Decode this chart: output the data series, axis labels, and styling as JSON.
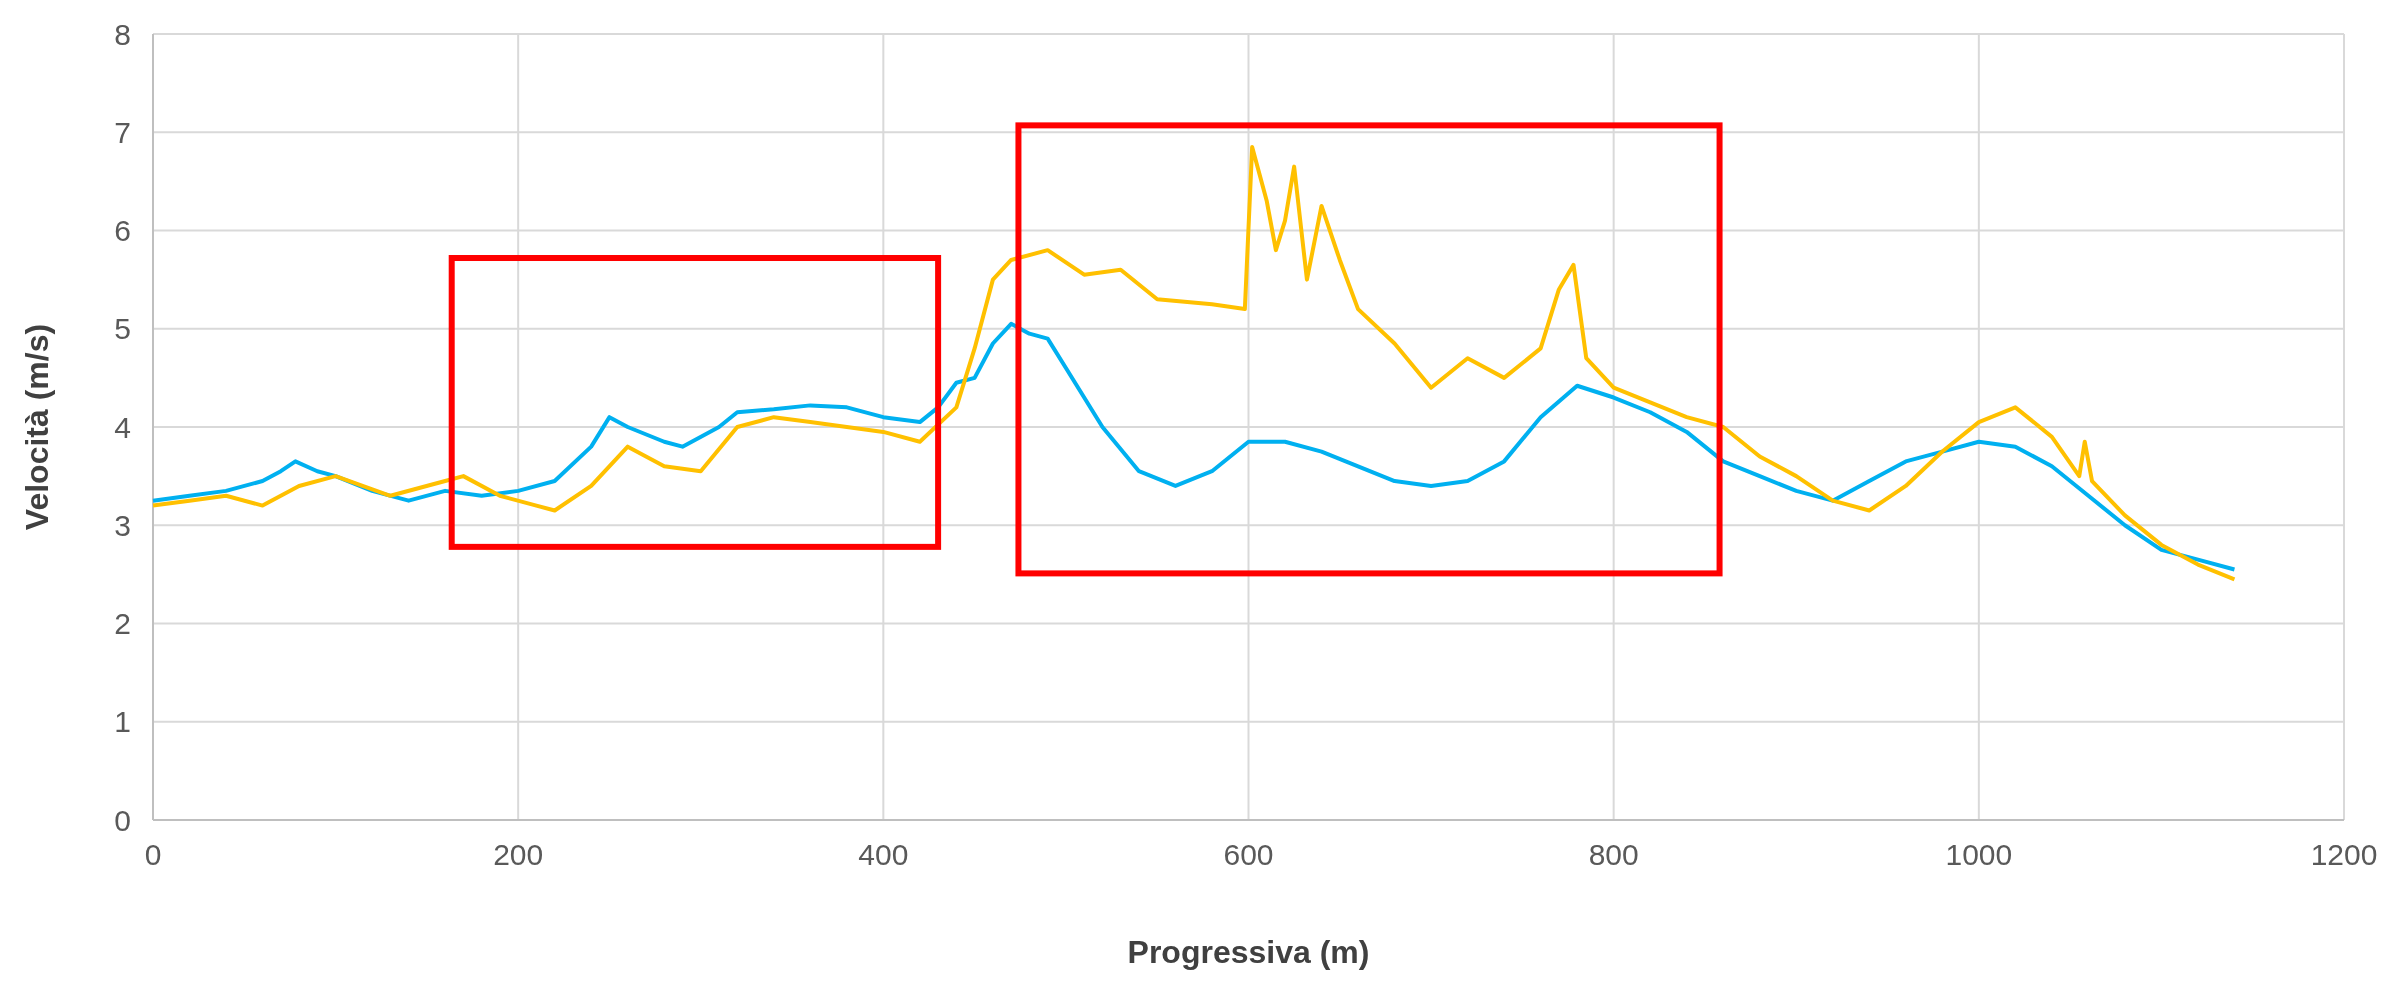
{
  "chart_data": {
    "type": "line",
    "xlabel": "Progressiva (m)",
    "ylabel": "Velocità (m/s)",
    "xlim": [
      0,
      1200
    ],
    "xticks": [
      0,
      200,
      400,
      600,
      800,
      1000,
      1200
    ],
    "ylim": [
      0,
      8
    ],
    "yticks": [
      0,
      1,
      2,
      3,
      4,
      5,
      6,
      7,
      8
    ],
    "grid": true,
    "line_style": "solid",
    "marker": "none",
    "series": [
      {
        "color": "#00b0f0",
        "x": [
          0,
          20,
          40,
          60,
          70,
          78,
          90,
          100,
          120,
          140,
          160,
          180,
          200,
          220,
          240,
          250,
          260,
          280,
          290,
          310,
          320,
          340,
          360,
          380,
          400,
          420,
          430,
          440,
          450,
          460,
          470,
          480,
          490,
          500,
          520,
          540,
          560,
          580,
          600,
          620,
          640,
          660,
          680,
          700,
          720,
          740,
          760,
          780,
          800,
          820,
          840,
          860,
          880,
          900,
          920,
          940,
          960,
          980,
          1000,
          1020,
          1040,
          1060,
          1080,
          1100,
          1120,
          1140
        ],
        "values": [
          3.25,
          3.3,
          3.35,
          3.45,
          3.55,
          3.65,
          3.55,
          3.5,
          3.35,
          3.25,
          3.35,
          3.3,
          3.35,
          3.45,
          3.8,
          4.1,
          4.0,
          3.85,
          3.8,
          4.0,
          4.15,
          4.18,
          4.22,
          4.2,
          4.1,
          4.05,
          4.2,
          4.45,
          4.5,
          4.85,
          5.05,
          4.95,
          4.9,
          4.6,
          4.0,
          3.55,
          3.4,
          3.55,
          3.85,
          3.85,
          3.75,
          3.6,
          3.45,
          3.4,
          3.45,
          3.65,
          4.1,
          4.42,
          4.3,
          4.15,
          3.95,
          3.65,
          3.5,
          3.35,
          3.25,
          3.45,
          3.65,
          3.75,
          3.85,
          3.8,
          3.6,
          3.3,
          3.0,
          2.75,
          2.65,
          2.55
        ]
      },
      {
        "color": "#ffc000",
        "x": [
          0,
          20,
          40,
          60,
          80,
          100,
          130,
          160,
          170,
          190,
          210,
          220,
          240,
          260,
          280,
          300,
          320,
          340,
          360,
          400,
          420,
          440,
          450,
          460,
          470,
          490,
          510,
          530,
          550,
          580,
          598,
          602,
          610,
          615,
          620,
          625,
          632,
          640,
          650,
          660,
          680,
          700,
          720,
          740,
          760,
          770,
          778,
          785,
          800,
          820,
          840,
          860,
          880,
          900,
          920,
          940,
          960,
          980,
          1000,
          1020,
          1040,
          1055,
          1058,
          1062,
          1080,
          1100,
          1120,
          1140
        ],
        "values": [
          3.2,
          3.25,
          3.3,
          3.2,
          3.4,
          3.5,
          3.3,
          3.45,
          3.5,
          3.3,
          3.2,
          3.15,
          3.4,
          3.8,
          3.6,
          3.55,
          4.0,
          4.1,
          4.05,
          3.95,
          3.85,
          4.2,
          4.8,
          5.5,
          5.7,
          5.8,
          5.55,
          5.6,
          5.3,
          5.25,
          5.2,
          6.85,
          6.3,
          5.8,
          6.1,
          6.65,
          5.5,
          6.25,
          5.7,
          5.2,
          4.85,
          4.4,
          4.7,
          4.5,
          4.8,
          5.4,
          5.65,
          4.7,
          4.4,
          4.25,
          4.1,
          4.0,
          3.7,
          3.5,
          3.25,
          3.15,
          3.4,
          3.75,
          4.05,
          4.2,
          3.9,
          3.5,
          3.85,
          3.45,
          3.1,
          2.8,
          2.6,
          2.45
        ]
      }
    ]
  }
}
